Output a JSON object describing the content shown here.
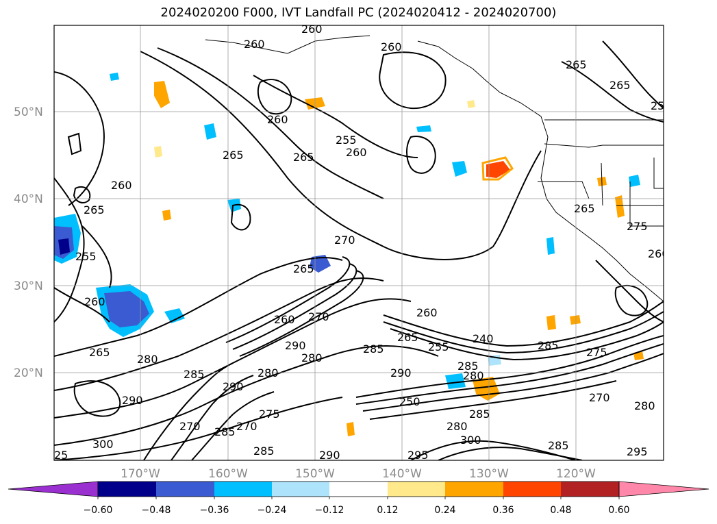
{
  "title": "2024020200 F000, IVT Landfall PC (2024020412 - 2024020700)",
  "map": {
    "lat_labels": [
      "50°N",
      "40°N",
      "30°N",
      "20°N"
    ],
    "lon_labels": [
      "170°W",
      "160°W",
      "150°W",
      "140°W",
      "130°W",
      "120°W"
    ],
    "contour_labels": [
      "260",
      "260",
      "260",
      "260",
      "255",
      "260",
      "265",
      "265",
      "260",
      "265",
      "265",
      "265",
      "265",
      "275",
      "250",
      "260",
      "255",
      "260",
      "265",
      "270",
      "265",
      "260",
      "270",
      "290",
      "280",
      "285",
      "265",
      "255",
      "240",
      "285",
      "285",
      "280",
      "275",
      "290",
      "280",
      "280",
      "290",
      "285",
      "250",
      "285",
      "270",
      "290",
      "300",
      "275",
      "270",
      "280",
      "285",
      "285",
      "290",
      "295",
      "300",
      "285",
      "295",
      "270",
      "280",
      "260",
      "25"
    ]
  },
  "colorbar": {
    "ticks": [
      "−0.60",
      "−0.48",
      "−0.36",
      "−0.24",
      "−0.12",
      "0.12",
      "0.24",
      "0.36",
      "0.48",
      "0.60"
    ],
    "colors": [
      "#9b30d0",
      "#00008b",
      "#3a5bd1",
      "#00bfff",
      "#ade4fb",
      "#ffffff",
      "#ffe98a",
      "#ffa500",
      "#ff4500",
      "#b22222",
      "#ff88aa"
    ]
  }
}
